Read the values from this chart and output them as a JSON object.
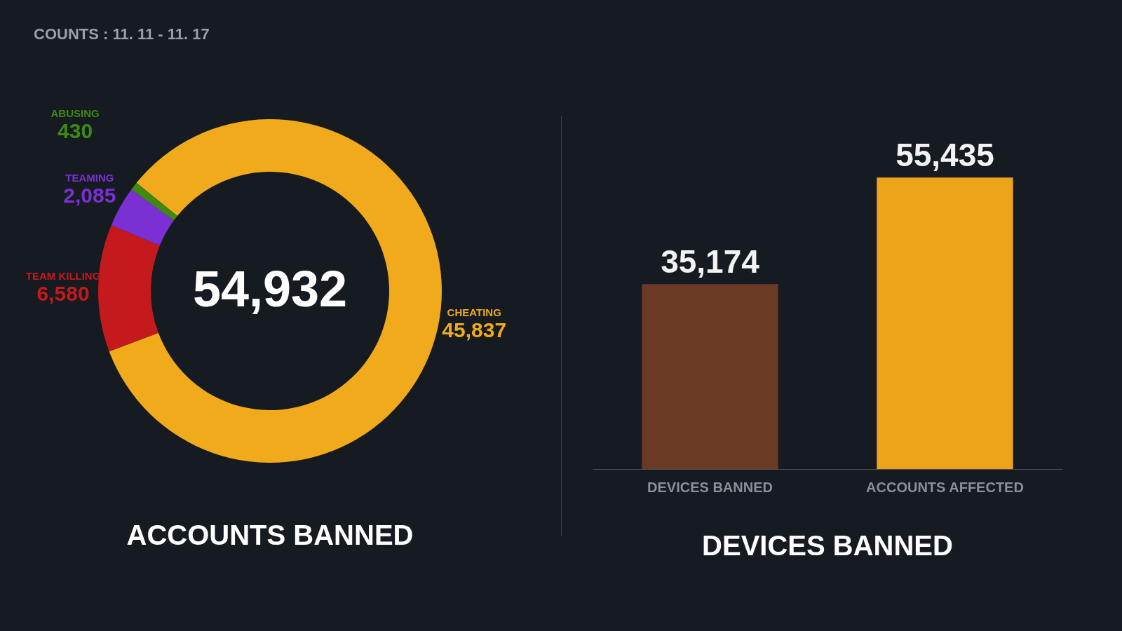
{
  "chart_data": [
    {
      "type": "donut",
      "title": "ACCOUNTS BANNED",
      "categories": [
        "CHEATING",
        "TEAM KILLING",
        "TEAMING",
        "ABUSING"
      ],
      "values": [
        45837,
        6580,
        2085,
        430
      ],
      "colors": [
        "#f0aa1c",
        "#c41a1e",
        "#7b30d4",
        "#3f8a12"
      ],
      "value_labels": [
        "45,837",
        "6,580",
        "2,085",
        "430"
      ],
      "legend": false,
      "annotations": [
        "COUNTS : 11. 11 - 11. 17",
        "54,932"
      ]
    },
    {
      "type": "bar",
      "title": "DEVICES BANNED",
      "categories": [
        "DEVICES BANNED",
        "ACCOUNTS AFFECTED"
      ],
      "values": [
        35174,
        55435
      ],
      "colors": [
        "#6a3a25",
        "#eea41a"
      ],
      "value_labels": [
        "35,174",
        "55,435"
      ]
    }
  ]
}
